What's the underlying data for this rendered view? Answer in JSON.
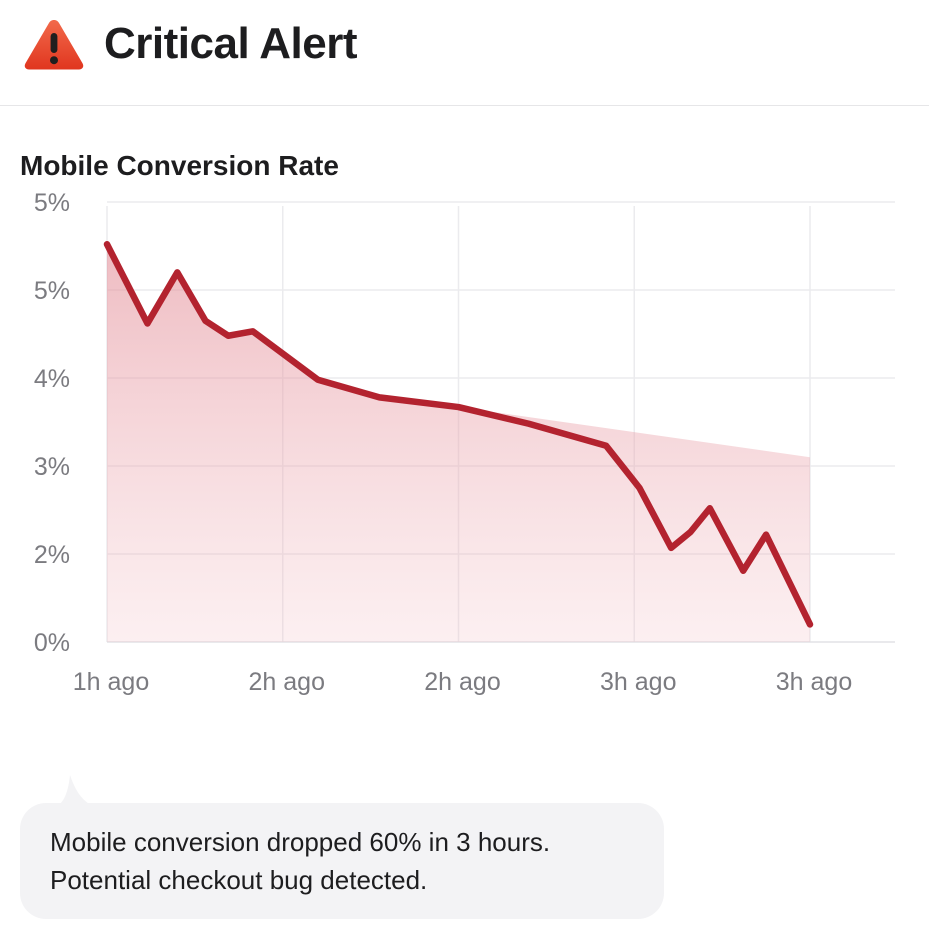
{
  "header": {
    "title": "Critical Alert",
    "icon": "warning-icon"
  },
  "colors": {
    "alert_red": "#e5432e",
    "line": "#b3232f",
    "area": "#e69aa3",
    "grid": "#ebebee",
    "tick_text": "#7b7b80",
    "bubble_bg": "#f3f3f5"
  },
  "chart_data": {
    "type": "line",
    "title": "Mobile Conversion Rate",
    "xlabel": "",
    "ylabel": "",
    "y_ticks": [
      "0%",
      "2%",
      "3%",
      "4%",
      "5%",
      "5%"
    ],
    "x_ticks": [
      "1h ago",
      "2h ago",
      "2h ago",
      "3h ago",
      "3h ago"
    ],
    "y_tick_positions": [
      0,
      1,
      2,
      3,
      4,
      5
    ],
    "x_tick_positions": [
      0,
      1,
      2,
      3,
      4
    ],
    "xlim": [
      0,
      4
    ],
    "ylim": [
      0,
      5
    ],
    "grid": true,
    "series": [
      {
        "points": [
          [
            0.0,
            4.52
          ],
          [
            0.23,
            3.62
          ],
          [
            0.4,
            4.2
          ],
          [
            0.56,
            3.65
          ],
          [
            0.69,
            3.48
          ],
          [
            0.83,
            3.53
          ],
          [
            1.2,
            2.98
          ],
          [
            1.55,
            2.78
          ],
          [
            2.0,
            2.67
          ],
          [
            2.4,
            2.48
          ],
          [
            2.84,
            2.23
          ],
          [
            3.03,
            1.75
          ],
          [
            3.21,
            1.07
          ],
          [
            3.32,
            1.25
          ],
          [
            3.43,
            1.52
          ],
          [
            3.62,
            0.81
          ],
          [
            3.75,
            1.22
          ],
          [
            4.0,
            0.2
          ]
        ]
      }
    ],
    "area_upper": [
      [
        0.0,
        4.52
      ],
      [
        0.23,
        3.62
      ],
      [
        0.4,
        4.2
      ],
      [
        0.56,
        3.65
      ],
      [
        0.69,
        3.48
      ],
      [
        0.83,
        3.53
      ],
      [
        1.2,
        2.98
      ],
      [
        1.55,
        2.78
      ],
      [
        2.0,
        2.67
      ],
      [
        4.0,
        2.1
      ]
    ]
  },
  "message": {
    "line1": "Mobile conversion dropped 60% in 3 hours.",
    "line2": "Potential checkout bug detected."
  }
}
